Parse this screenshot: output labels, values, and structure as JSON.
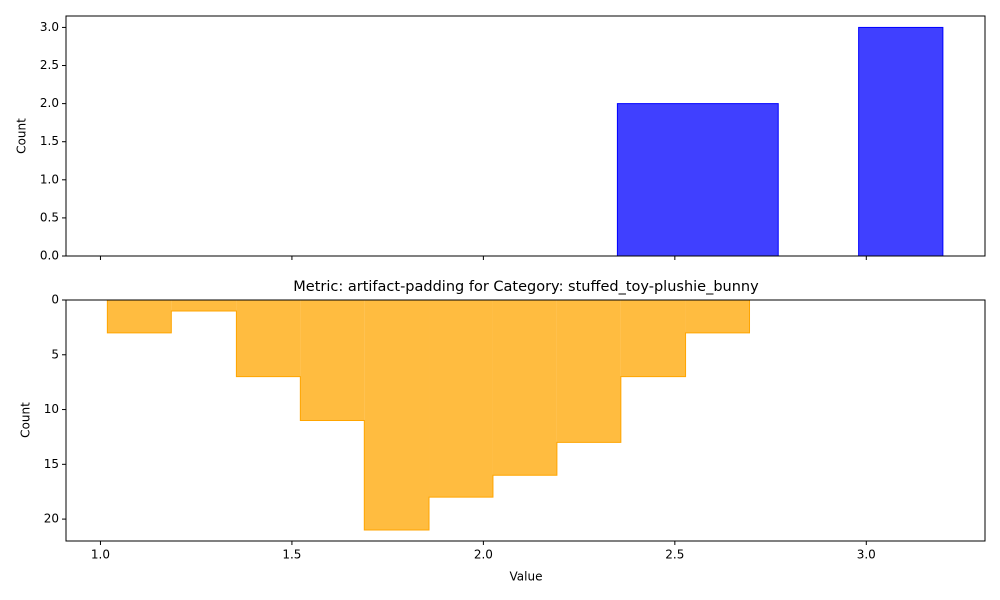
{
  "chart_data": [
    {
      "type": "histogram",
      "ylabel": "Count",
      "bins": [
        2.35,
        2.77,
        2.98,
        3.2
      ],
      "values": [
        2,
        0,
        3
      ],
      "color": "#0000ff",
      "xlim": [
        0.91,
        3.31
      ],
      "ylim": [
        0,
        3.15
      ],
      "yticks": [
        {
          "value": 0,
          "label": "0.0"
        },
        {
          "value": 0.5,
          "label": "0.5"
        },
        {
          "value": 1,
          "label": "1.0"
        },
        {
          "value": 1.5,
          "label": "1.5"
        },
        {
          "value": 2,
          "label": "2.0"
        },
        {
          "value": 2.5,
          "label": "2.5"
        },
        {
          "value": 3,
          "label": "3.0"
        }
      ]
    },
    {
      "type": "step-histogram",
      "title": "Metric: artifact-padding for Category: stuffed_toy-plushie_bunny",
      "xlabel": "Value",
      "ylabel": "Count",
      "bins": [
        1.018,
        1.185,
        1.355,
        1.522,
        1.689,
        1.858,
        2.025,
        2.192,
        2.359,
        2.528,
        2.695
      ],
      "values": [
        3,
        1,
        7,
        11,
        21,
        18,
        16,
        13,
        7,
        3
      ],
      "color": "#ffa500",
      "xlim": [
        0.91,
        3.31
      ],
      "ylim": [
        0,
        22
      ],
      "y_inverted": true,
      "xticks": [
        {
          "value": 1,
          "label": "1.0"
        },
        {
          "value": 1.5,
          "label": "1.5"
        },
        {
          "value": 2,
          "label": "2.0"
        },
        {
          "value": 2.5,
          "label": "2.5"
        },
        {
          "value": 3,
          "label": "3.0"
        }
      ],
      "yticks": [
        0,
        5,
        10,
        15,
        20
      ]
    }
  ]
}
